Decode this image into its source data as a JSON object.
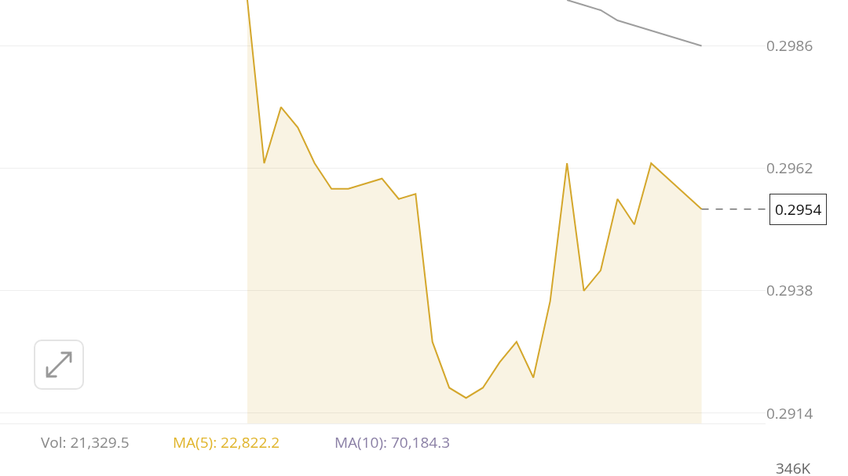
{
  "chart_data": {
    "type": "area",
    "categories": [
      null,
      null,
      null,
      null,
      null,
      null,
      null,
      null,
      null,
      null,
      null,
      null,
      null,
      null,
      null,
      null,
      null,
      null,
      null,
      null,
      null,
      null,
      null,
      null,
      null,
      null,
      null,
      null,
      null,
      null,
      null,
      null,
      null,
      null,
      null,
      null,
      null,
      null,
      null,
      null,
      null,
      null
    ],
    "series": [
      {
        "color": "#d4a72c",
        "values": [
          null,
          null,
          null,
          null,
          null,
          null,
          null,
          null,
          null,
          null,
          null,
          null,
          null,
          null,
          0.2995,
          0.2963,
          0.2974,
          0.297,
          0.2963,
          0.2958,
          0.2958,
          0.2959,
          0.296,
          0.2956,
          0.2957,
          0.2928,
          0.2919,
          0.2917,
          0.2919,
          0.2924,
          0.2928,
          0.2921,
          0.2936,
          0.2963,
          0.2938,
          0.2942,
          0.2956,
          0.2951,
          0.2963,
          0.296,
          0.2957,
          0.2954
        ]
      },
      {
        "type": "line",
        "color": "#9e9e9e",
        "values": [
          null,
          null,
          null,
          null,
          null,
          null,
          null,
          null,
          null,
          null,
          null,
          null,
          null,
          null,
          null,
          null,
          null,
          null,
          null,
          null,
          null,
          null,
          null,
          null,
          null,
          null,
          null,
          null,
          null,
          null,
          null,
          null,
          null,
          0.2995,
          0.2994,
          0.2993,
          0.2991,
          0.299,
          0.2989,
          0.2988,
          0.2987,
          0.2986
        ]
      }
    ],
    "ylim": [
      0.2912,
      0.2995
    ],
    "yticks": [
      0.2914,
      0.2938,
      0.2962,
      0.2986
    ],
    "tick_labels": "y",
    "grid": "y",
    "marker": "none",
    "ref_lines": [
      {
        "axis": "y",
        "value": 0.2954,
        "label": "0.2954",
        "line_style": "dashed",
        "color": "#333333"
      }
    ],
    "annotations": [
      "Vol: 21,329.5",
      "MA(5): 22,822.2",
      "MA(10): 70,184.3",
      "346K"
    ]
  }
}
